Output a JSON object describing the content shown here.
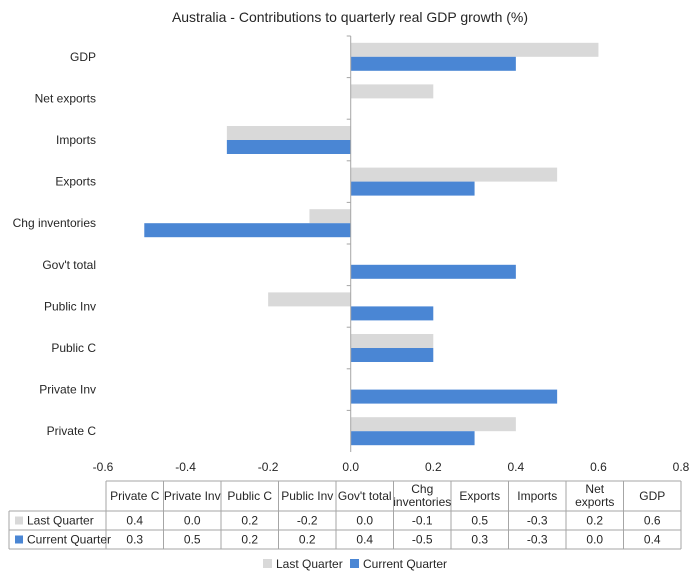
{
  "chart_data": {
    "type": "bar",
    "orientation": "horizontal",
    "title": "Australia - Contributions to quarterly real GDP growth (%)",
    "categories": [
      "Private C",
      "Private Inv",
      "Public C",
      "Public Inv",
      "Gov't total",
      "Chg inventories",
      "Exports",
      "Imports",
      "Net exports",
      "GDP"
    ],
    "table_headers": [
      "Private C",
      "Private Inv",
      "Public C",
      "Public Inv",
      "Gov't total",
      "Chg\ninventories",
      "Exports",
      "Imports",
      "Net\nexports",
      "GDP"
    ],
    "series": [
      {
        "name": "Last Quarter",
        "color": "#d9d9d9",
        "values": [
          0.4,
          0.0,
          0.2,
          -0.2,
          0.0,
          -0.1,
          0.5,
          -0.3,
          0.2,
          0.6
        ],
        "labels": [
          "0.4",
          "0.0",
          "0.2",
          "-0.2",
          "0.0",
          "-0.1",
          "0.5",
          "-0.3",
          "0.2",
          "0.6"
        ]
      },
      {
        "name": "Current Quarter",
        "color": "#4a86d4",
        "values": [
          0.3,
          0.5,
          0.2,
          0.2,
          0.4,
          -0.5,
          0.3,
          -0.3,
          0.0,
          0.4
        ],
        "labels": [
          "0.3",
          "0.5",
          "0.2",
          "0.2",
          "0.4",
          "-0.5",
          "0.3",
          "-0.3",
          "0.0",
          "0.4"
        ]
      }
    ],
    "xlim": [
      -0.6,
      0.8
    ],
    "xticks": [
      -0.6,
      -0.4,
      -0.2,
      0,
      0.2,
      0.4,
      0.6,
      0.8
    ],
    "xtick_labels": [
      "-0.6",
      "-0.4",
      "-0.2",
      "0.0",
      "0.2",
      "0.4",
      "0.6",
      "0.8"
    ],
    "legend_position": "bottom"
  }
}
